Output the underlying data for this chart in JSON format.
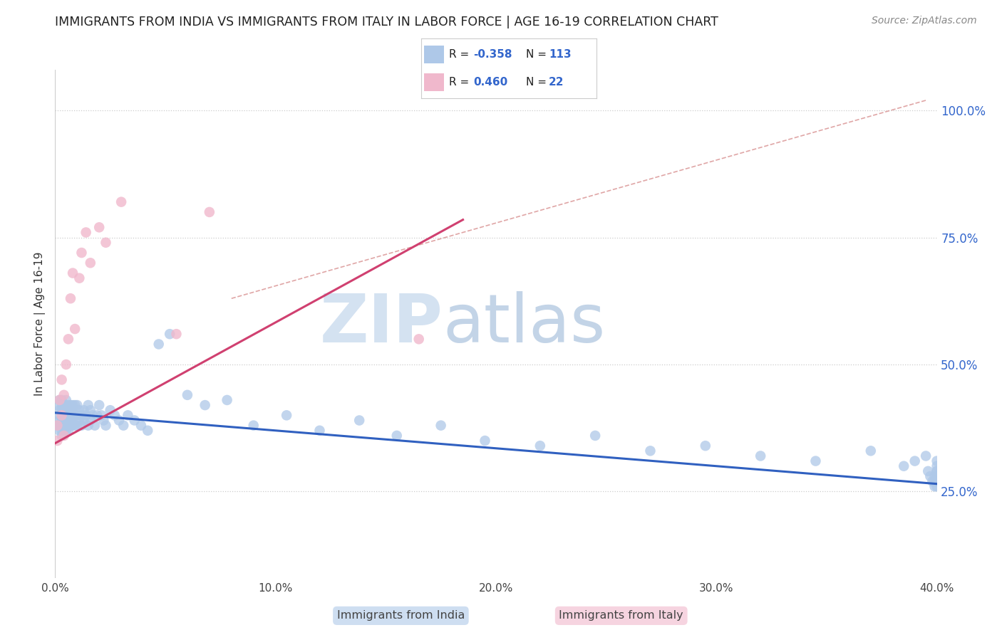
{
  "title": "IMMIGRANTS FROM INDIA VS IMMIGRANTS FROM ITALY IN LABOR FORCE | AGE 16-19 CORRELATION CHART",
  "source": "Source: ZipAtlas.com",
  "ylabel": "In Labor Force | Age 16-19",
  "xlim": [
    0.0,
    0.4
  ],
  "ylim": [
    0.08,
    1.08
  ],
  "yticks": [
    0.25,
    0.5,
    0.75,
    1.0
  ],
  "ytick_labels": [
    "25.0%",
    "50.0%",
    "75.0%",
    "100.0%"
  ],
  "xticks": [
    0.0,
    0.1,
    0.2,
    0.3,
    0.4
  ],
  "xtick_labels": [
    "0.0%",
    "10.0%",
    "20.0%",
    "30.0%",
    "40.0%"
  ],
  "india_color": "#aec8e8",
  "india_edge": "#aec8e8",
  "italy_color": "#f0b8cc",
  "italy_edge": "#f0b8cc",
  "india_line_color": "#3060c0",
  "italy_line_color": "#d04070",
  "diag_line_color": "#d89090",
  "r_india": -0.358,
  "n_india": 113,
  "r_italy": 0.46,
  "n_italy": 22,
  "watermark_zip": "ZIP",
  "watermark_atlas": "atlas",
  "india_trendline_x": [
    0.0,
    0.4
  ],
  "india_trendline_y": [
    0.405,
    0.265
  ],
  "italy_trendline_x": [
    0.0,
    0.185
  ],
  "italy_trendline_y": [
    0.345,
    0.785
  ],
  "diag_line_x": [
    0.08,
    0.395
  ],
  "diag_line_y": [
    0.63,
    1.02
  ],
  "india_x": [
    0.001,
    0.001,
    0.002,
    0.002,
    0.002,
    0.002,
    0.002,
    0.002,
    0.003,
    0.003,
    0.003,
    0.003,
    0.003,
    0.003,
    0.003,
    0.003,
    0.004,
    0.004,
    0.004,
    0.004,
    0.004,
    0.004,
    0.005,
    0.005,
    0.005,
    0.005,
    0.005,
    0.005,
    0.005,
    0.006,
    0.006,
    0.006,
    0.006,
    0.006,
    0.006,
    0.007,
    0.007,
    0.007,
    0.007,
    0.007,
    0.008,
    0.008,
    0.008,
    0.008,
    0.009,
    0.009,
    0.009,
    0.01,
    0.01,
    0.01,
    0.011,
    0.011,
    0.012,
    0.012,
    0.013,
    0.013,
    0.014,
    0.015,
    0.015,
    0.016,
    0.016,
    0.017,
    0.018,
    0.019,
    0.02,
    0.021,
    0.022,
    0.023,
    0.025,
    0.027,
    0.029,
    0.031,
    0.033,
    0.036,
    0.039,
    0.042,
    0.047,
    0.052,
    0.06,
    0.068,
    0.078,
    0.09,
    0.105,
    0.12,
    0.138,
    0.155,
    0.175,
    0.195,
    0.22,
    0.245,
    0.27,
    0.295,
    0.32,
    0.345,
    0.37,
    0.385,
    0.39,
    0.395,
    0.396,
    0.397,
    0.398,
    0.399,
    0.399,
    0.399,
    0.4,
    0.4,
    0.4,
    0.4,
    0.4,
    0.4,
    0.4,
    0.4,
    0.4
  ],
  "india_y": [
    0.42,
    0.38,
    0.4,
    0.41,
    0.39,
    0.37,
    0.43,
    0.38,
    0.4,
    0.42,
    0.38,
    0.37,
    0.39,
    0.41,
    0.43,
    0.36,
    0.41,
    0.39,
    0.42,
    0.38,
    0.37,
    0.4,
    0.42,
    0.39,
    0.41,
    0.38,
    0.4,
    0.43,
    0.37,
    0.41,
    0.39,
    0.42,
    0.38,
    0.4,
    0.37,
    0.42,
    0.4,
    0.38,
    0.39,
    0.41,
    0.41,
    0.39,
    0.42,
    0.38,
    0.4,
    0.42,
    0.38,
    0.42,
    0.4,
    0.38,
    0.41,
    0.39,
    0.4,
    0.38,
    0.41,
    0.39,
    0.4,
    0.42,
    0.38,
    0.39,
    0.41,
    0.4,
    0.38,
    0.4,
    0.42,
    0.4,
    0.39,
    0.38,
    0.41,
    0.4,
    0.39,
    0.38,
    0.4,
    0.39,
    0.38,
    0.37,
    0.54,
    0.56,
    0.44,
    0.42,
    0.43,
    0.38,
    0.4,
    0.37,
    0.39,
    0.36,
    0.38,
    0.35,
    0.34,
    0.36,
    0.33,
    0.34,
    0.32,
    0.31,
    0.33,
    0.3,
    0.31,
    0.32,
    0.29,
    0.28,
    0.27,
    0.26,
    0.27,
    0.28,
    0.29,
    0.3,
    0.31,
    0.28,
    0.27,
    0.29,
    0.26,
    0.28,
    0.27
  ],
  "italy_x": [
    0.001,
    0.001,
    0.002,
    0.003,
    0.003,
    0.004,
    0.004,
    0.005,
    0.006,
    0.007,
    0.008,
    0.009,
    0.011,
    0.012,
    0.014,
    0.016,
    0.02,
    0.023,
    0.03,
    0.055,
    0.07,
    0.165
  ],
  "italy_y": [
    0.38,
    0.35,
    0.43,
    0.4,
    0.47,
    0.44,
    0.36,
    0.5,
    0.55,
    0.63,
    0.68,
    0.57,
    0.67,
    0.72,
    0.76,
    0.7,
    0.77,
    0.74,
    0.82,
    0.56,
    0.8,
    0.55
  ]
}
